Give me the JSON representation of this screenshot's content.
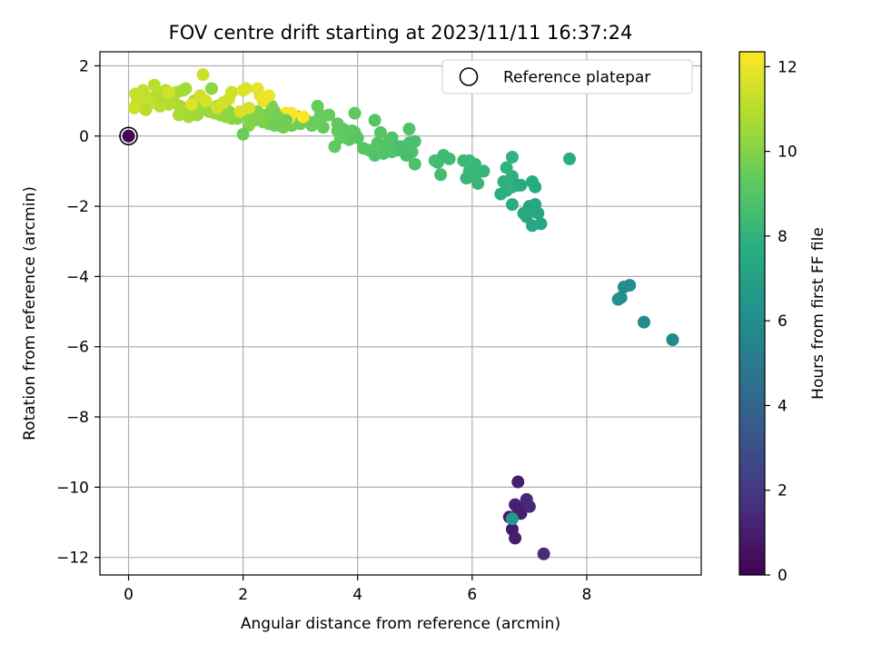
{
  "chart_data": {
    "type": "scatter",
    "title": "FOV centre drift starting at 2023/11/11 16:37:24",
    "xlabel": "Angular distance from reference (arcmin)",
    "ylabel": "Rotation from reference (arcmin)",
    "xlim": [
      -0.5,
      10.0
    ],
    "ylim": [
      -12.5,
      2.4
    ],
    "x_ticks": [
      0,
      2,
      4,
      6,
      8
    ],
    "y_ticks": [
      -12,
      -10,
      -8,
      -6,
      -4,
      -2,
      0,
      2
    ],
    "x_tick_labels": [
      "0",
      "2",
      "4",
      "6",
      "8"
    ],
    "y_tick_labels": [
      "−12",
      "−10",
      "−8",
      "−6",
      "−4",
      "−2",
      "0",
      "2"
    ],
    "grid": true,
    "colormap": "viridis",
    "colorbar": {
      "label": "Hours from first FF file",
      "range": [
        0,
        12.35
      ],
      "ticks": [
        0,
        2,
        4,
        6,
        8,
        10,
        12
      ],
      "tick_labels": [
        "0",
        "2",
        "4",
        "6",
        "8",
        "10",
        "12"
      ]
    },
    "legend": {
      "position": "top-right",
      "entries": [
        {
          "label": "Reference platepar",
          "marker": "open-circle"
        }
      ]
    },
    "reference_point": {
      "x": 0,
      "y": 0
    },
    "points": [
      {
        "x": 0.0,
        "y": 0.0,
        "c": 0.1
      },
      {
        "x": 6.8,
        "y": -9.85,
        "c": 1.0
      },
      {
        "x": 6.75,
        "y": -10.5,
        "c": 1.2
      },
      {
        "x": 6.8,
        "y": -10.6,
        "c": 1.1
      },
      {
        "x": 6.95,
        "y": -10.35,
        "c": 1.3
      },
      {
        "x": 7.0,
        "y": -10.55,
        "c": 1.4
      },
      {
        "x": 6.85,
        "y": -10.75,
        "c": 1.0
      },
      {
        "x": 6.65,
        "y": -10.85,
        "c": 0.8
      },
      {
        "x": 6.7,
        "y": -11.2,
        "c": 0.9
      },
      {
        "x": 6.75,
        "y": -11.45,
        "c": 1.0
      },
      {
        "x": 7.25,
        "y": -11.9,
        "c": 1.5
      },
      {
        "x": 6.7,
        "y": -10.9,
        "c": 6.6
      },
      {
        "x": 9.5,
        "y": -5.8,
        "c": 5.8
      },
      {
        "x": 9.0,
        "y": -5.3,
        "c": 5.9
      },
      {
        "x": 8.75,
        "y": -4.25,
        "c": 6.0
      },
      {
        "x": 8.65,
        "y": -4.3,
        "c": 6.0
      },
      {
        "x": 8.6,
        "y": -4.6,
        "c": 6.1
      },
      {
        "x": 8.55,
        "y": -4.65,
        "c": 6.1
      },
      {
        "x": 7.7,
        "y": -0.65,
        "c": 7.7
      },
      {
        "x": 7.0,
        "y": -2.0,
        "c": 7.2
      },
      {
        "x": 7.15,
        "y": -2.2,
        "c": 7.2
      },
      {
        "x": 6.95,
        "y": -2.3,
        "c": 7.3
      },
      {
        "x": 7.05,
        "y": -2.55,
        "c": 7.3
      },
      {
        "x": 7.2,
        "y": -2.5,
        "c": 7.4
      },
      {
        "x": 7.1,
        "y": -1.95,
        "c": 7.4
      },
      {
        "x": 6.9,
        "y": -2.2,
        "c": 7.5
      },
      {
        "x": 7.05,
        "y": -1.3,
        "c": 7.6
      },
      {
        "x": 7.1,
        "y": -1.45,
        "c": 7.6
      },
      {
        "x": 6.85,
        "y": -1.4,
        "c": 7.7
      },
      {
        "x": 6.7,
        "y": -1.95,
        "c": 7.7
      },
      {
        "x": 6.6,
        "y": -1.55,
        "c": 7.8
      },
      {
        "x": 6.5,
        "y": -1.65,
        "c": 7.8
      },
      {
        "x": 6.7,
        "y": -1.15,
        "c": 7.9
      },
      {
        "x": 6.55,
        "y": -1.3,
        "c": 7.9
      },
      {
        "x": 6.7,
        "y": -0.6,
        "c": 8.0
      },
      {
        "x": 6.6,
        "y": -0.9,
        "c": 8.0
      },
      {
        "x": 6.7,
        "y": -1.45,
        "c": 8.0
      },
      {
        "x": 6.8,
        "y": -1.4,
        "c": 7.6
      },
      {
        "x": 6.2,
        "y": -1.0,
        "c": 8.1
      },
      {
        "x": 6.05,
        "y": -1.2,
        "c": 8.1
      },
      {
        "x": 6.1,
        "y": -1.35,
        "c": 8.2
      },
      {
        "x": 5.95,
        "y": -1.0,
        "c": 8.2
      },
      {
        "x": 5.9,
        "y": -1.2,
        "c": 8.2
      },
      {
        "x": 5.95,
        "y": -0.7,
        "c": 8.3
      },
      {
        "x": 6.05,
        "y": -0.8,
        "c": 8.3
      },
      {
        "x": 5.85,
        "y": -0.7,
        "c": 8.3
      },
      {
        "x": 6.0,
        "y": -1.05,
        "c": 8.2
      },
      {
        "x": 5.6,
        "y": -0.65,
        "c": 8.4
      },
      {
        "x": 5.5,
        "y": -0.55,
        "c": 8.4
      },
      {
        "x": 5.4,
        "y": -0.75,
        "c": 8.4
      },
      {
        "x": 5.35,
        "y": -0.7,
        "c": 8.5
      },
      {
        "x": 5.45,
        "y": -1.1,
        "c": 8.5
      },
      {
        "x": 4.9,
        "y": -0.2,
        "c": 8.7
      },
      {
        "x": 5.0,
        "y": -0.15,
        "c": 8.7
      },
      {
        "x": 4.95,
        "y": -0.45,
        "c": 8.8
      },
      {
        "x": 5.0,
        "y": -0.8,
        "c": 8.8
      },
      {
        "x": 4.85,
        "y": -0.55,
        "c": 8.6
      },
      {
        "x": 4.75,
        "y": -0.3,
        "c": 8.7
      },
      {
        "x": 4.7,
        "y": -0.4,
        "c": 8.7
      },
      {
        "x": 4.6,
        "y": -0.05,
        "c": 8.8
      },
      {
        "x": 4.9,
        "y": 0.2,
        "c": 8.8
      },
      {
        "x": 4.5,
        "y": -0.3,
        "c": 8.9
      },
      {
        "x": 4.45,
        "y": -0.5,
        "c": 8.9
      },
      {
        "x": 4.3,
        "y": -0.55,
        "c": 8.9
      },
      {
        "x": 4.35,
        "y": -0.2,
        "c": 9.0
      },
      {
        "x": 4.4,
        "y": 0.1,
        "c": 9.0
      },
      {
        "x": 4.3,
        "y": 0.45,
        "c": 9.0
      },
      {
        "x": 4.2,
        "y": -0.4,
        "c": 9.0
      },
      {
        "x": 4.1,
        "y": -0.35,
        "c": 9.1
      },
      {
        "x": 4.0,
        "y": -0.05,
        "c": 9.1
      },
      {
        "x": 3.95,
        "y": 0.1,
        "c": 9.1
      },
      {
        "x": 3.85,
        "y": -0.1,
        "c": 9.1
      },
      {
        "x": 3.9,
        "y": 0.15,
        "c": 9.2
      },
      {
        "x": 3.95,
        "y": 0.65,
        "c": 9.2
      },
      {
        "x": 3.8,
        "y": 0.0,
        "c": 9.2
      },
      {
        "x": 3.75,
        "y": 0.2,
        "c": 9.2
      },
      {
        "x": 3.7,
        "y": -0.05,
        "c": 9.3
      },
      {
        "x": 3.65,
        "y": 0.15,
        "c": 9.3
      },
      {
        "x": 3.6,
        "y": -0.3,
        "c": 9.3
      },
      {
        "x": 3.65,
        "y": 0.35,
        "c": 9.3
      },
      {
        "x": 4.55,
        "y": -0.15,
        "c": 8.9
      },
      {
        "x": 4.6,
        "y": -0.45,
        "c": 8.9
      },
      {
        "x": 3.4,
        "y": 0.25,
        "c": 9.4
      },
      {
        "x": 3.35,
        "y": 0.6,
        "c": 9.4
      },
      {
        "x": 3.3,
        "y": 0.85,
        "c": 9.4
      },
      {
        "x": 3.25,
        "y": 0.4,
        "c": 9.5
      },
      {
        "x": 3.2,
        "y": 0.3,
        "c": 9.5
      },
      {
        "x": 3.1,
        "y": 0.45,
        "c": 9.5
      },
      {
        "x": 3.0,
        "y": 0.35,
        "c": 9.6
      },
      {
        "x": 2.95,
        "y": 0.55,
        "c": 9.6
      },
      {
        "x": 2.85,
        "y": 0.3,
        "c": 9.6
      },
      {
        "x": 2.7,
        "y": 0.25,
        "c": 9.7
      },
      {
        "x": 2.65,
        "y": 0.5,
        "c": 9.7
      },
      {
        "x": 2.55,
        "y": 0.7,
        "c": 9.7
      },
      {
        "x": 2.5,
        "y": 0.45,
        "c": 9.8
      },
      {
        "x": 2.45,
        "y": 0.35,
        "c": 9.8
      },
      {
        "x": 2.5,
        "y": 0.85,
        "c": 9.8
      },
      {
        "x": 2.4,
        "y": 0.6,
        "c": 9.8
      },
      {
        "x": 2.35,
        "y": 0.4,
        "c": 9.9
      },
      {
        "x": 2.3,
        "y": 0.55,
        "c": 9.9
      },
      {
        "x": 2.25,
        "y": 0.7,
        "c": 9.9
      },
      {
        "x": 2.2,
        "y": 0.45,
        "c": 9.9
      },
      {
        "x": 2.15,
        "y": 0.55,
        "c": 10.0
      },
      {
        "x": 2.1,
        "y": 0.3,
        "c": 10.0
      },
      {
        "x": 2.0,
        "y": 0.05,
        "c": 9.5
      },
      {
        "x": 2.05,
        "y": 0.6,
        "c": 10.0
      },
      {
        "x": 1.9,
        "y": 0.5,
        "c": 10.1
      },
      {
        "x": 1.8,
        "y": 0.5,
        "c": 10.1
      },
      {
        "x": 1.75,
        "y": 0.7,
        "c": 10.2
      },
      {
        "x": 1.7,
        "y": 0.55,
        "c": 10.2
      },
      {
        "x": 1.6,
        "y": 0.6,
        "c": 10.3
      },
      {
        "x": 1.55,
        "y": 0.85,
        "c": 10.3
      },
      {
        "x": 1.5,
        "y": 0.65,
        "c": 10.4
      },
      {
        "x": 1.4,
        "y": 0.7,
        "c": 10.4
      },
      {
        "x": 1.3,
        "y": 0.9,
        "c": 10.5
      },
      {
        "x": 1.2,
        "y": 0.6,
        "c": 10.5
      },
      {
        "x": 1.1,
        "y": 0.8,
        "c": 10.6
      },
      {
        "x": 1.05,
        "y": 0.55,
        "c": 10.6
      },
      {
        "x": 0.95,
        "y": 0.7,
        "c": 10.7
      },
      {
        "x": 0.9,
        "y": 0.85,
        "c": 10.7
      },
      {
        "x": 0.88,
        "y": 0.6,
        "c": 10.7
      },
      {
        "x": 0.8,
        "y": 0.95,
        "c": 10.8
      },
      {
        "x": 0.75,
        "y": 1.1,
        "c": 10.8
      },
      {
        "x": 0.7,
        "y": 0.9,
        "c": 10.9
      },
      {
        "x": 0.65,
        "y": 1.3,
        "c": 10.9
      },
      {
        "x": 0.6,
        "y": 1.05,
        "c": 11.0
      },
      {
        "x": 0.55,
        "y": 0.85,
        "c": 11.0
      },
      {
        "x": 0.5,
        "y": 1.2,
        "c": 11.0
      },
      {
        "x": 0.45,
        "y": 1.45,
        "c": 11.1
      },
      {
        "x": 0.4,
        "y": 1.0,
        "c": 11.1
      },
      {
        "x": 0.35,
        "y": 0.9,
        "c": 11.2
      },
      {
        "x": 0.3,
        "y": 1.15,
        "c": 11.2
      },
      {
        "x": 0.25,
        "y": 1.3,
        "c": 11.2
      },
      {
        "x": 0.2,
        "y": 1.05,
        "c": 11.3
      },
      {
        "x": 0.15,
        "y": 0.95,
        "c": 11.3
      },
      {
        "x": 0.12,
        "y": 1.2,
        "c": 11.3
      },
      {
        "x": 0.1,
        "y": 0.8,
        "c": 11.4
      },
      {
        "x": 0.3,
        "y": 0.75,
        "c": 11.0
      },
      {
        "x": 0.55,
        "y": 1.1,
        "c": 10.9
      },
      {
        "x": 0.85,
        "y": 1.25,
        "c": 10.8
      },
      {
        "x": 1.0,
        "y": 1.35,
        "c": 10.7
      },
      {
        "x": 1.15,
        "y": 1.0,
        "c": 10.6
      },
      {
        "x": 1.25,
        "y": 1.15,
        "c": 11.5
      },
      {
        "x": 1.3,
        "y": 1.75,
        "c": 11.4
      },
      {
        "x": 1.35,
        "y": 1.0,
        "c": 11.6
      },
      {
        "x": 1.45,
        "y": 1.35,
        "c": 10.2
      },
      {
        "x": 1.55,
        "y": 0.8,
        "c": 11.5
      },
      {
        "x": 1.65,
        "y": 0.95,
        "c": 11.6
      },
      {
        "x": 1.75,
        "y": 1.05,
        "c": 11.5
      },
      {
        "x": 1.8,
        "y": 1.25,
        "c": 11.4
      },
      {
        "x": 1.95,
        "y": 0.7,
        "c": 11.6
      },
      {
        "x": 2.0,
        "y": 1.3,
        "c": 11.8
      },
      {
        "x": 2.05,
        "y": 1.35,
        "c": 11.7
      },
      {
        "x": 2.1,
        "y": 0.8,
        "c": 11.6
      },
      {
        "x": 2.25,
        "y": 1.35,
        "c": 11.9
      },
      {
        "x": 2.3,
        "y": 1.15,
        "c": 11.8
      },
      {
        "x": 2.35,
        "y": 1.0,
        "c": 11.9
      },
      {
        "x": 2.4,
        "y": 1.1,
        "c": 12.0
      },
      {
        "x": 2.45,
        "y": 1.15,
        "c": 12.0
      },
      {
        "x": 2.75,
        "y": 0.65,
        "c": 12.2
      },
      {
        "x": 2.8,
        "y": 0.5,
        "c": 12.2
      },
      {
        "x": 2.85,
        "y": 0.65,
        "c": 12.3
      },
      {
        "x": 3.05,
        "y": 0.55,
        "c": 12.3
      },
      {
        "x": 0.95,
        "y": 1.3,
        "c": 10.6
      },
      {
        "x": 1.1,
        "y": 0.9,
        "c": 11.7
      },
      {
        "x": 0.7,
        "y": 1.25,
        "c": 11.5
      },
      {
        "x": 2.6,
        "y": 0.55,
        "c": 9.7
      },
      {
        "x": 2.55,
        "y": 0.3,
        "c": 9.6
      },
      {
        "x": 2.75,
        "y": 0.45,
        "c": 9.6
      },
      {
        "x": 3.35,
        "y": 0.4,
        "c": 9.5
      },
      {
        "x": 3.5,
        "y": 0.6,
        "c": 9.4
      }
    ]
  }
}
